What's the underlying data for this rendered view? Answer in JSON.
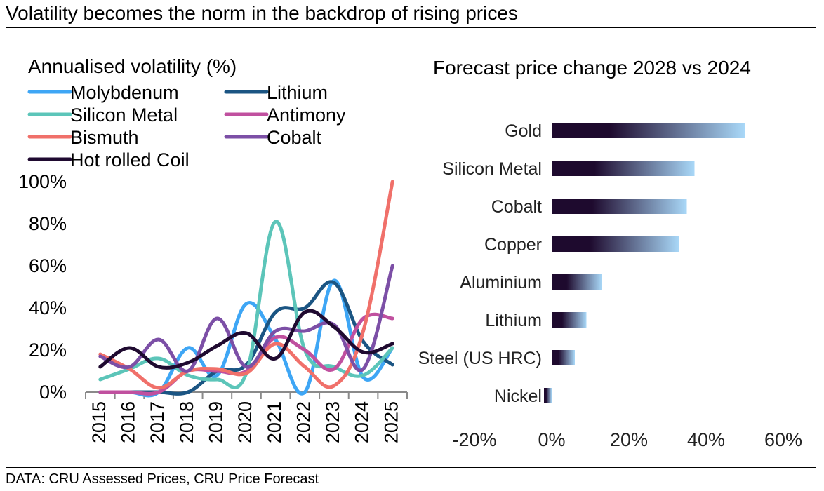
{
  "title": "Volatility becomes the norm in the backdrop of rising prices",
  "source": "DATA: CRU Assessed Prices, CRU Price Forecast",
  "chart_data": [
    {
      "type": "line",
      "title": "Annualised volatility (%)",
      "x": [
        "2015",
        "2016",
        "2017",
        "2018",
        "2019",
        "2020",
        "2021",
        "2022",
        "2023",
        "2024",
        "2025"
      ],
      "ylim": [
        0,
        100
      ],
      "yticks": [
        "0%",
        "20%",
        "40%",
        "60%",
        "80%",
        "100%"
      ],
      "grid": false,
      "legend": "top",
      "series": [
        {
          "name": "Molybdenum",
          "color": "#3ea6f5",
          "values": [
            0,
            0,
            0,
            21,
            8,
            42,
            25,
            0,
            53,
            7,
            21
          ]
        },
        {
          "name": "Lithium",
          "color": "#1b5583",
          "values": [
            0,
            0,
            0,
            0,
            10,
            13,
            38,
            40,
            52,
            24,
            13
          ]
        },
        {
          "name": "Silicon Metal",
          "color": "#5cc5b9",
          "values": [
            6,
            11,
            16,
            8,
            6,
            9,
            81,
            20,
            12,
            8,
            21
          ]
        },
        {
          "name": "Antimony",
          "color": "#c0509f",
          "values": [
            0,
            0,
            0,
            10,
            10,
            10,
            26,
            20,
            11,
            35,
            35
          ]
        },
        {
          "name": "Bismuth",
          "color": "#f0706a",
          "values": [
            18,
            11,
            2,
            10,
            11,
            9,
            23,
            12,
            3,
            29,
            100
          ]
        },
        {
          "name": "Cobalt",
          "color": "#7c4fa6",
          "values": [
            17,
            12,
            25,
            10,
            35,
            12,
            29,
            29,
            32,
            11,
            60
          ]
        },
        {
          "name": "Hot rolled Coil",
          "color": "#1f0a30",
          "values": [
            12,
            21,
            12,
            14,
            22,
            28,
            16,
            38,
            31,
            19,
            23
          ]
        }
      ]
    },
    {
      "type": "bar",
      "orientation": "horizontal",
      "title": "Forecast price change 2028 vs 2024",
      "categories": [
        "Gold",
        "Silicon Metal",
        "Cobalt",
        "Copper",
        "Aluminium",
        "Lithium",
        "Steel (US HRC)",
        "Nickel"
      ],
      "values": [
        50,
        37,
        35,
        33,
        13,
        9,
        6,
        -2
      ],
      "xlim": [
        -20,
        60
      ],
      "xticks": [
        "-20%",
        "0%",
        "20%",
        "40%",
        "60%"
      ],
      "gradient_from": "#1e0a2e",
      "gradient_to": "#a9d8f8",
      "grid": false
    }
  ]
}
